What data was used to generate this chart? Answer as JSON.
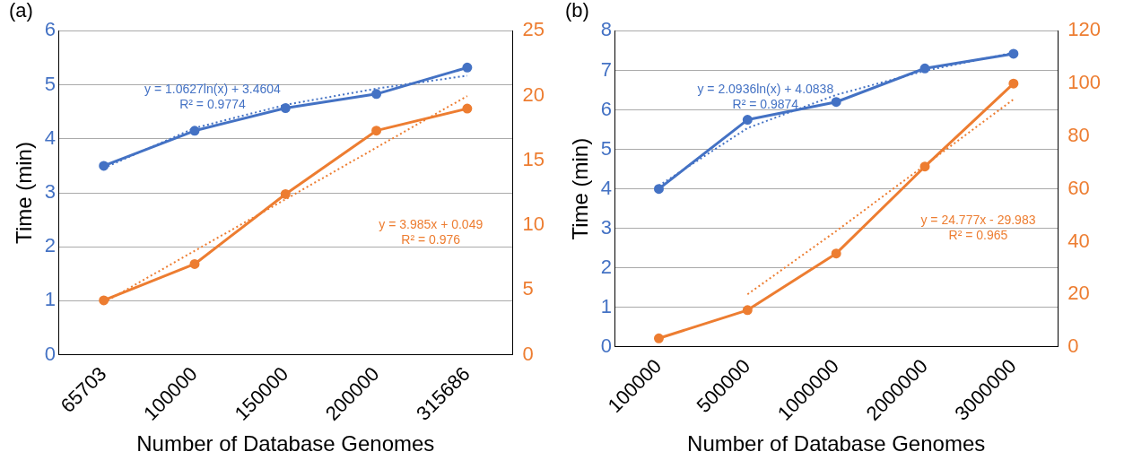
{
  "chart_data": [
    {
      "type": "line",
      "title": "(a)",
      "xlabel": "Number of Database Genomes",
      "ylabel": "Time (min)",
      "categories": [
        "65703",
        "100000",
        "150000",
        "200000",
        "315686"
      ],
      "ylim": [
        0,
        6
      ],
      "yticks": [
        0,
        1,
        2,
        3,
        4,
        5,
        6
      ],
      "y2lim": [
        0,
        25
      ],
      "y2ticks": [
        0,
        5,
        10,
        15,
        20,
        25
      ],
      "grid": "y",
      "legend": false,
      "marker": "circle",
      "series": [
        {
          "color": "#4472c4",
          "values": [
            3.5,
            4.15,
            4.57,
            4.83,
            5.32
          ]
        },
        {
          "color": "#ed7d31",
          "axis": "y2",
          "values": [
            4.2,
            7.0,
            12.4,
            17.3,
            19.0
          ]
        },
        {
          "name": "y = 1.0627ln(x) + 3.4604\nR² = 0.9774",
          "color": "#4472c4",
          "marker": "none",
          "line_style": "dotted",
          "values": [
            3.46,
            4.2,
            4.63,
            4.93,
            5.17
          ]
        },
        {
          "name": "y = 3.985x + 0.049\nR² = 0.976",
          "color": "#ed7d31",
          "axis": "y2",
          "marker": "none",
          "line_style": "dotted",
          "values": [
            4.03,
            8.02,
            12.0,
            15.99,
            19.97
          ]
        }
      ]
    },
    {
      "type": "line",
      "title": "(b)",
      "xlabel": "Number of Database Genomes",
      "ylabel": "Time (min)",
      "categories": [
        "100000",
        "500000",
        "1000000",
        "2000000",
        "3000000"
      ],
      "ylim": [
        0,
        8
      ],
      "yticks": [
        0,
        1,
        2,
        3,
        4,
        5,
        6,
        7,
        8
      ],
      "y2lim": [
        0,
        120
      ],
      "y2ticks": [
        0,
        20,
        40,
        60,
        80,
        100,
        120
      ],
      "grid": "y",
      "legend": false,
      "marker": "circle",
      "series": [
        {
          "color": "#4472c4",
          "values": [
            4.0,
            5.75,
            6.2,
            7.05,
            7.42
          ]
        },
        {
          "color": "#ed7d31",
          "axis": "y2",
          "values": [
            3.3,
            14,
            35.5,
            68.5,
            100
          ]
        },
        {
          "name": "y = 2.0936ln(x) + 4.0838\nR² = 0.9874",
          "color": "#4472c4",
          "marker": "none",
          "line_style": "dotted",
          "values": [
            4.08,
            5.54,
            6.38,
            6.99,
            7.45
          ]
        },
        {
          "name": "y = 24.777x - 29.983\nR² = 0.965",
          "color": "#ed7d31",
          "axis": "y2",
          "marker": "none",
          "line_style": "dotted",
          "values": [
            null,
            20,
            44,
            69,
            94
          ]
        }
      ]
    }
  ]
}
